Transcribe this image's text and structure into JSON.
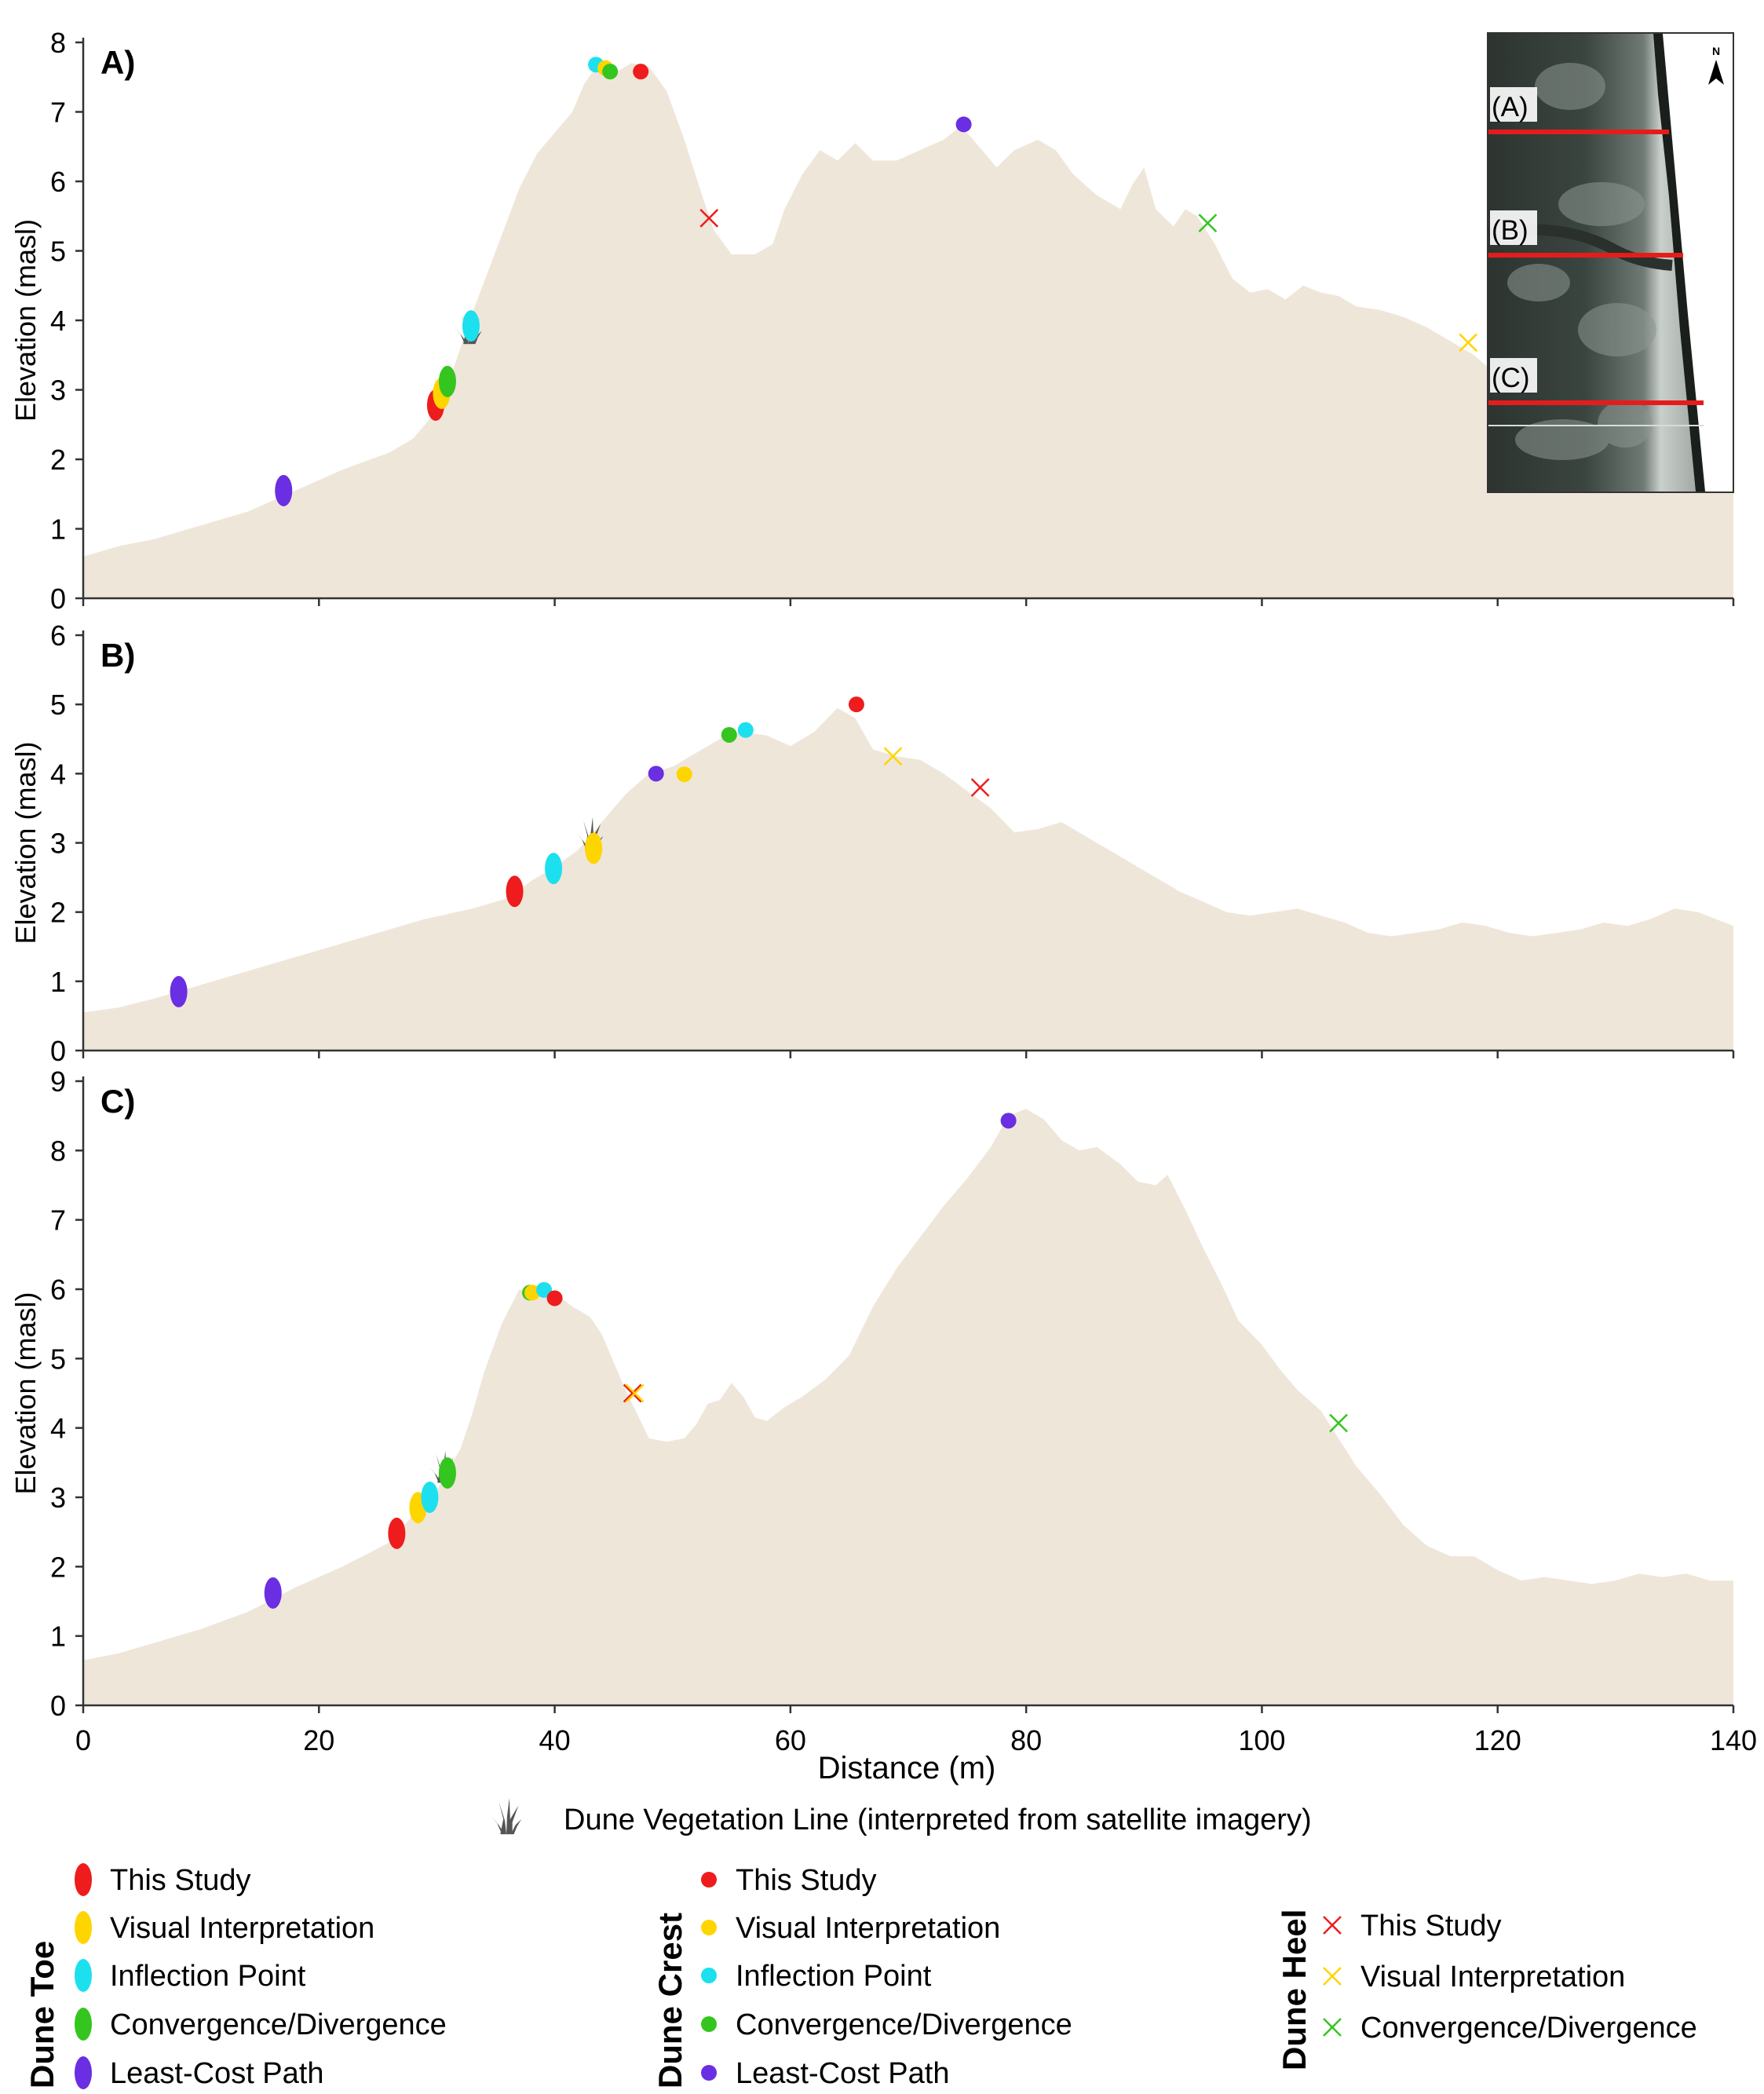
{
  "chart_data": [
    {
      "panel": "A)",
      "type": "area",
      "ylabel": "Elevation (masl)",
      "xlim": [
        0,
        140
      ],
      "ylim": [
        0,
        8
      ],
      "yticks": [
        0,
        1,
        2,
        3,
        4,
        5,
        6,
        7,
        8
      ],
      "profile": [
        [
          0,
          0.6
        ],
        [
          3,
          0.75
        ],
        [
          6,
          0.85
        ],
        [
          10,
          1.05
        ],
        [
          14,
          1.25
        ],
        [
          18,
          1.55
        ],
        [
          22,
          1.85
        ],
        [
          26,
          2.1
        ],
        [
          28,
          2.3
        ],
        [
          30,
          2.7
        ],
        [
          31,
          3.1
        ],
        [
          32,
          3.6
        ],
        [
          33,
          4.1
        ],
        [
          35,
          5.0
        ],
        [
          37,
          5.9
        ],
        [
          38.5,
          6.4
        ],
        [
          40,
          6.7
        ],
        [
          41.5,
          7.0
        ],
        [
          42.5,
          7.4
        ],
        [
          43.5,
          7.65
        ],
        [
          45,
          7.55
        ],
        [
          46.5,
          7.7
        ],
        [
          48,
          7.65
        ],
        [
          49.5,
          7.3
        ],
        [
          51,
          6.6
        ],
        [
          52.5,
          5.8
        ],
        [
          53.5,
          5.3
        ],
        [
          55,
          4.95
        ],
        [
          57,
          4.95
        ],
        [
          58.5,
          5.1
        ],
        [
          59.5,
          5.6
        ],
        [
          61,
          6.1
        ],
        [
          62.5,
          6.45
        ],
        [
          64,
          6.3
        ],
        [
          65.5,
          6.55
        ],
        [
          67,
          6.3
        ],
        [
          69,
          6.3
        ],
        [
          71,
          6.45
        ],
        [
          73,
          6.6
        ],
        [
          74.5,
          6.8
        ],
        [
          76,
          6.5
        ],
        [
          77.5,
          6.2
        ],
        [
          79,
          6.45
        ],
        [
          81,
          6.6
        ],
        [
          82.5,
          6.45
        ],
        [
          84,
          6.1
        ],
        [
          86,
          5.8
        ],
        [
          88,
          5.6
        ],
        [
          89,
          5.95
        ],
        [
          90,
          6.2
        ],
        [
          91,
          5.6
        ],
        [
          92.5,
          5.35
        ],
        [
          93.5,
          5.6
        ],
        [
          94.5,
          5.5
        ],
        [
          96,
          5.1
        ],
        [
          97.5,
          4.6
        ],
        [
          99,
          4.4
        ],
        [
          100.5,
          4.45
        ],
        [
          102,
          4.3
        ],
        [
          103.5,
          4.5
        ],
        [
          105,
          4.4
        ],
        [
          106.5,
          4.35
        ],
        [
          108,
          4.2
        ],
        [
          110,
          4.15
        ],
        [
          112,
          4.05
        ],
        [
          114,
          3.9
        ],
        [
          116,
          3.7
        ],
        [
          118,
          3.5
        ],
        [
          120,
          3.2
        ],
        [
          122,
          2.9
        ],
        [
          124,
          2.6
        ],
        [
          126,
          2.3
        ],
        [
          128,
          2.1
        ],
        [
          130,
          1.9
        ],
        [
          132,
          1.8
        ],
        [
          134,
          1.7
        ],
        [
          136,
          1.6
        ],
        [
          140,
          1.6
        ]
      ],
      "toe": [
        {
          "method": "This Study",
          "x": 29.9,
          "y": 2.78
        },
        {
          "method": "Visual Interpretation",
          "x": 30.4,
          "y": 2.95
        },
        {
          "method": "Convergence/Divergence",
          "x": 30.9,
          "y": 3.12
        },
        {
          "method": "Inflection Point",
          "x": 32.9,
          "y": 3.92
        },
        {
          "method": "Least-Cost Path",
          "x": 17.0,
          "y": 1.55
        }
      ],
      "crest": [
        {
          "method": "Inflection Point",
          "x": 43.5,
          "y": 7.68
        },
        {
          "method": "Visual Interpretation",
          "x": 44.3,
          "y": 7.63
        },
        {
          "method": "Convergence/Divergence",
          "x": 44.7,
          "y": 7.58
        },
        {
          "method": "This Study",
          "x": 47.3,
          "y": 7.58
        },
        {
          "method": "Least-Cost Path",
          "x": 74.7,
          "y": 6.82
        }
      ],
      "heel": [
        {
          "method": "This Study",
          "x": 53.1,
          "y": 5.47
        },
        {
          "method": "Convergence/Divergence",
          "x": 95.4,
          "y": 5.4
        },
        {
          "method": "Visual Interpretation",
          "x": 117.5,
          "y": 3.68
        }
      ],
      "vegetation_x": 32.7,
      "vegetation_y": 3.7
    },
    {
      "panel": "B)",
      "type": "area",
      "ylabel": "Elevation (masl)",
      "xlim": [
        0,
        140
      ],
      "ylim": [
        0,
        6
      ],
      "yticks": [
        0,
        1,
        2,
        3,
        4,
        5,
        6
      ],
      "profile": [
        [
          0,
          0.55
        ],
        [
          3,
          0.62
        ],
        [
          6,
          0.75
        ],
        [
          9,
          0.9
        ],
        [
          13,
          1.1
        ],
        [
          17,
          1.3
        ],
        [
          21,
          1.5
        ],
        [
          25,
          1.7
        ],
        [
          29,
          1.9
        ],
        [
          33,
          2.05
        ],
        [
          36,
          2.2
        ],
        [
          38,
          2.45
        ],
        [
          40,
          2.65
        ],
        [
          42,
          2.9
        ],
        [
          44,
          3.3
        ],
        [
          46,
          3.7
        ],
        [
          48,
          4.0
        ],
        [
          50,
          4.1
        ],
        [
          52,
          4.3
        ],
        [
          54,
          4.5
        ],
        [
          56,
          4.6
        ],
        [
          58,
          4.55
        ],
        [
          60,
          4.4
        ],
        [
          62,
          4.6
        ],
        [
          64,
          4.95
        ],
        [
          65.5,
          4.8
        ],
        [
          67,
          4.35
        ],
        [
          69,
          4.25
        ],
        [
          71,
          4.2
        ],
        [
          73,
          4.0
        ],
        [
          75,
          3.75
        ],
        [
          77,
          3.5
        ],
        [
          79,
          3.15
        ],
        [
          81,
          3.2
        ],
        [
          83,
          3.3
        ],
        [
          85,
          3.1
        ],
        [
          87,
          2.9
        ],
        [
          89,
          2.7
        ],
        [
          91,
          2.5
        ],
        [
          93,
          2.3
        ],
        [
          95,
          2.15
        ],
        [
          97,
          2.0
        ],
        [
          99,
          1.95
        ],
        [
          101,
          2.0
        ],
        [
          103,
          2.05
        ],
        [
          105,
          1.95
        ],
        [
          107,
          1.85
        ],
        [
          109,
          1.7
        ],
        [
          111,
          1.65
        ],
        [
          113,
          1.7
        ],
        [
          115,
          1.75
        ],
        [
          117,
          1.85
        ],
        [
          119,
          1.8
        ],
        [
          121,
          1.7
        ],
        [
          123,
          1.65
        ],
        [
          125,
          1.7
        ],
        [
          127,
          1.75
        ],
        [
          129,
          1.85
        ],
        [
          131,
          1.8
        ],
        [
          133,
          1.9
        ],
        [
          135,
          2.05
        ],
        [
          137,
          2.0
        ],
        [
          140,
          1.8
        ]
      ],
      "toe": [
        {
          "method": "This Study",
          "x": 36.6,
          "y": 2.3
        },
        {
          "method": "Inflection Point",
          "x": 39.9,
          "y": 2.63
        },
        {
          "method": "Visual Interpretation",
          "x": 43.3,
          "y": 2.92
        },
        {
          "method": "Least-Cost Path",
          "x": 8.1,
          "y": 0.85
        }
      ],
      "crest": [
        {
          "method": "Least-Cost Path",
          "x": 48.6,
          "y": 4.0
        },
        {
          "method": "Visual Interpretation",
          "x": 51.0,
          "y": 3.99
        },
        {
          "method": "Convergence/Divergence",
          "x": 54.8,
          "y": 4.56
        },
        {
          "method": "Inflection Point",
          "x": 56.2,
          "y": 4.63
        },
        {
          "method": "This Study",
          "x": 65.6,
          "y": 5.0
        }
      ],
      "heel": [
        {
          "method": "Visual Interpretation",
          "x": 68.7,
          "y": 4.25
        },
        {
          "method": "This Study",
          "x": 76.1,
          "y": 3.8
        }
      ],
      "vegetation_x": 43.0,
      "vegetation_y": 2.95
    },
    {
      "panel": "C)",
      "type": "area",
      "xlabel": "Distance (m)",
      "ylabel": "Elevation (masl)",
      "xlim": [
        0,
        140
      ],
      "ylim": [
        0,
        9
      ],
      "xticks": [
        0,
        20,
        40,
        60,
        80,
        100,
        120,
        140
      ],
      "yticks": [
        0,
        1,
        2,
        3,
        4,
        5,
        6,
        7,
        8,
        9
      ],
      "profile": [
        [
          0,
          0.65
        ],
        [
          3,
          0.75
        ],
        [
          6,
          0.9
        ],
        [
          10,
          1.1
        ],
        [
          14,
          1.35
        ],
        [
          18,
          1.7
        ],
        [
          22,
          2.0
        ],
        [
          26,
          2.35
        ],
        [
          28,
          2.75
        ],
        [
          30,
          3.1
        ],
        [
          31,
          3.4
        ],
        [
          32,
          3.7
        ],
        [
          33,
          4.2
        ],
        [
          34,
          4.8
        ],
        [
          35.5,
          5.5
        ],
        [
          37,
          6.0
        ],
        [
          38.5,
          5.9
        ],
        [
          40,
          5.95
        ],
        [
          41.5,
          5.75
        ],
        [
          43,
          5.6
        ],
        [
          44,
          5.35
        ],
        [
          45,
          4.95
        ],
        [
          46,
          4.55
        ],
        [
          47,
          4.2
        ],
        [
          48,
          3.85
        ],
        [
          49.5,
          3.8
        ],
        [
          51,
          3.85
        ],
        [
          52,
          4.05
        ],
        [
          53,
          4.35
        ],
        [
          54,
          4.4
        ],
        [
          55,
          4.65
        ],
        [
          56,
          4.45
        ],
        [
          57,
          4.15
        ],
        [
          58,
          4.1
        ],
        [
          59.5,
          4.3
        ],
        [
          61,
          4.45
        ],
        [
          63,
          4.7
        ],
        [
          65,
          5.05
        ],
        [
          67,
          5.75
        ],
        [
          69,
          6.3
        ],
        [
          71,
          6.75
        ],
        [
          73,
          7.2
        ],
        [
          75,
          7.6
        ],
        [
          77,
          8.05
        ],
        [
          78.5,
          8.5
        ],
        [
          80,
          8.6
        ],
        [
          81.5,
          8.45
        ],
        [
          83,
          8.15
        ],
        [
          84.5,
          8.0
        ],
        [
          86,
          8.05
        ],
        [
          88,
          7.8
        ],
        [
          89.5,
          7.55
        ],
        [
          91,
          7.5
        ],
        [
          92,
          7.65
        ],
        [
          93.5,
          7.15
        ],
        [
          95,
          6.6
        ],
        [
          96.5,
          6.1
        ],
        [
          98,
          5.55
        ],
        [
          100,
          5.2
        ],
        [
          101.5,
          4.85
        ],
        [
          103,
          4.55
        ],
        [
          105,
          4.25
        ],
        [
          106.5,
          3.85
        ],
        [
          108,
          3.45
        ],
        [
          110,
          3.05
        ],
        [
          112,
          2.6
        ],
        [
          114,
          2.3
        ],
        [
          116,
          2.15
        ],
        [
          118,
          2.15
        ],
        [
          120,
          1.95
        ],
        [
          122,
          1.8
        ],
        [
          124,
          1.85
        ],
        [
          126,
          1.8
        ],
        [
          128,
          1.75
        ],
        [
          130,
          1.8
        ],
        [
          132,
          1.9
        ],
        [
          134,
          1.85
        ],
        [
          136,
          1.9
        ],
        [
          138,
          1.8
        ],
        [
          140,
          1.8
        ]
      ],
      "toe": [
        {
          "method": "This Study",
          "x": 26.6,
          "y": 2.48
        },
        {
          "method": "Visual Interpretation",
          "x": 28.4,
          "y": 2.85
        },
        {
          "method": "Inflection Point",
          "x": 29.4,
          "y": 3.0
        },
        {
          "method": "Convergence/Divergence",
          "x": 30.9,
          "y": 3.35
        },
        {
          "method": "Least-Cost Path",
          "x": 16.1,
          "y": 1.62
        }
      ],
      "crest": [
        {
          "method": "Convergence/Divergence",
          "x": 37.9,
          "y": 5.95
        },
        {
          "method": "Visual Interpretation",
          "x": 38.1,
          "y": 5.95
        },
        {
          "method": "Inflection Point",
          "x": 39.1,
          "y": 5.99
        },
        {
          "method": "This Study",
          "x": 40.0,
          "y": 5.87
        },
        {
          "method": "Least-Cost Path",
          "x": 78.5,
          "y": 8.43
        }
      ],
      "heel": [
        {
          "method": "This Study",
          "x": 46.6,
          "y": 4.5
        },
        {
          "method": "Visual Interpretation",
          "x": 46.8,
          "y": 4.5
        },
        {
          "method": "Convergence/Divergence",
          "x": 106.5,
          "y": 4.07
        }
      ],
      "vegetation_x": 30.5,
      "vegetation_y": 3.25
    }
  ],
  "colors": {
    "profile_fill": "#efe6da",
    "This Study": "#ee1c1c",
    "Visual Interpretation": "#ffd500",
    "Inflection Point": "#1de0ee",
    "Convergence/Divergence": "#35c51f",
    "Least-Cost Path": "#6a2ee3",
    "transect_line": "#e61c1c",
    "vegetation_icon": "#555555"
  },
  "inset": {
    "labels": [
      "(A)",
      "(B)",
      "(C)"
    ],
    "north_label": "N"
  },
  "vegetation_legend": {
    "icon": "grass-icon",
    "label": "Dune Vegetation Line (interpreted from satellite imagery)"
  },
  "legend": {
    "toe": {
      "title": "Dune Toe",
      "marker": "ellipse",
      "items": [
        "This Study",
        "Visual Interpretation",
        "Inflection Point",
        "Convergence/Divergence",
        "Least-Cost Path"
      ]
    },
    "crest": {
      "title": "Dune Crest",
      "marker": "circle",
      "items": [
        "This Study",
        "Visual Interpretation",
        "Inflection Point",
        "Convergence/Divergence",
        "Least-Cost Path"
      ]
    },
    "heel": {
      "title": "Dune Heel",
      "marker": "x",
      "items": [
        "This Study",
        "Visual Interpretation",
        "Convergence/Divergence"
      ]
    }
  }
}
